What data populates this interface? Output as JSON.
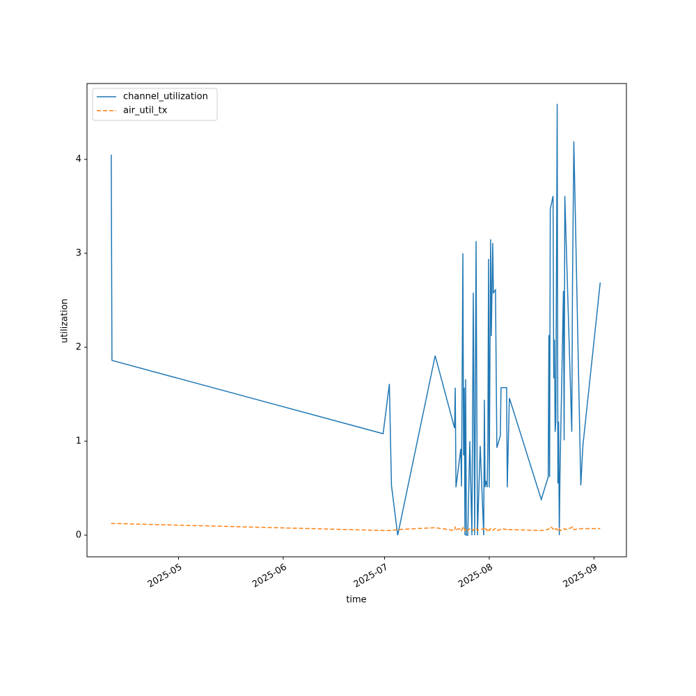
{
  "chart_data": {
    "type": "line",
    "xlabel": "time",
    "ylabel": "utilization",
    "x": [
      20189.08,
      20189.29,
      20269.57,
      20271.42,
      20272.04,
      20273.89,
      20284.98,
      20290.72,
      20290.93,
      20291.14,
      20292.57,
      20292.78,
      20293.19,
      20293.39,
      20293.6,
      20293.8,
      20294.01,
      20294.22,
      20294.63,
      20295.24,
      20295.86,
      20296.27,
      20296.68,
      20297.09,
      20297.3,
      20297.5,
      20298.32,
      20299.35,
      20299.55,
      20299.76,
      20299.97,
      20300.38,
      20300.58,
      20300.79,
      20300.99,
      20301.4,
      20301.61,
      20302.02,
      20302.22,
      20302.84,
      20303.25,
      20304.28,
      20304.48,
      20306.13,
      20306.33,
      20306.95,
      20316.39,
      20318.45,
      20318.65,
      20318.86,
      20319.06,
      20319.88,
      20320.09,
      20320.29,
      20320.5,
      20320.7,
      20321.11,
      20321.32,
      20321.53,
      20321.73,
      20321.94,
      20322.96,
      20323.17,
      20323.37,
      20325.43,
      20325.63,
      20326.04,
      20328.1,
      20328.71,
      20333.85
    ],
    "series": [
      {
        "name": "channel_utilization",
        "color": "#1f77b4",
        "linestyle": "solid",
        "values": [
          4.05,
          1.86,
          1.08,
          1.61,
          0.53,
          0.0,
          1.91,
          1.14,
          1.57,
          0.51,
          0.92,
          0.52,
          3.0,
          0.85,
          1.57,
          0.0,
          1.66,
          0.0,
          0.0,
          1.0,
          0.0,
          2.58,
          0.0,
          3.13,
          1.47,
          0.0,
          0.95,
          0.0,
          1.44,
          0.51,
          0.58,
          0.51,
          0.99,
          2.94,
          0.51,
          3.15,
          2.12,
          3.11,
          2.58,
          2.61,
          0.93,
          1.06,
          1.57,
          1.57,
          0.51,
          1.46,
          0.38,
          0.62,
          2.13,
          0.62,
          3.47,
          3.61,
          1.67,
          2.08,
          1.1,
          1.21,
          4.59,
          0.55,
          1.21,
          0.0,
          0.66,
          2.6,
          1.01,
          3.61,
          1.1,
          2.64,
          4.19,
          0.53,
          0.95,
          2.69
        ]
      },
      {
        "name": "air_util_tx",
        "color": "#ff7f0e",
        "linestyle": "dashed",
        "values": [
          0.13,
          0.125,
          0.05,
          0.05,
          0.05,
          0.06,
          0.08,
          0.05,
          0.09,
          0.06,
          0.07,
          0.05,
          0.08,
          0.06,
          0.07,
          0.05,
          0.07,
          0.06,
          0.05,
          0.07,
          0.06,
          0.05,
          0.07,
          0.06,
          0.07,
          0.05,
          0.06,
          0.07,
          0.05,
          0.06,
          0.07,
          0.05,
          0.06,
          0.07,
          0.05,
          0.07,
          0.06,
          0.05,
          0.06,
          0.07,
          0.05,
          0.06,
          0.07,
          0.06,
          0.05,
          0.06,
          0.05,
          0.06,
          0.07,
          0.08,
          0.09,
          0.07,
          0.06,
          0.05,
          0.06,
          0.07,
          0.06,
          0.05,
          0.06,
          0.07,
          0.05,
          0.06,
          0.07,
          0.06,
          0.08,
          0.09,
          0.06,
          0.07,
          0.07,
          0.07
        ]
      }
    ],
    "xlim": [
      20181.9,
      20341.6
    ],
    "xticks": [
      {
        "value": 20209,
        "label": "2025-05"
      },
      {
        "value": 20240,
        "label": "2025-06"
      },
      {
        "value": 20270,
        "label": "2025-07"
      },
      {
        "value": 20301,
        "label": "2025-08"
      },
      {
        "value": 20332,
        "label": "2025-09"
      }
    ],
    "ylim": [
      -0.23,
      4.807
    ],
    "yticks": [
      0,
      1,
      2,
      3,
      4
    ],
    "grid": false,
    "legend": "upper left"
  }
}
